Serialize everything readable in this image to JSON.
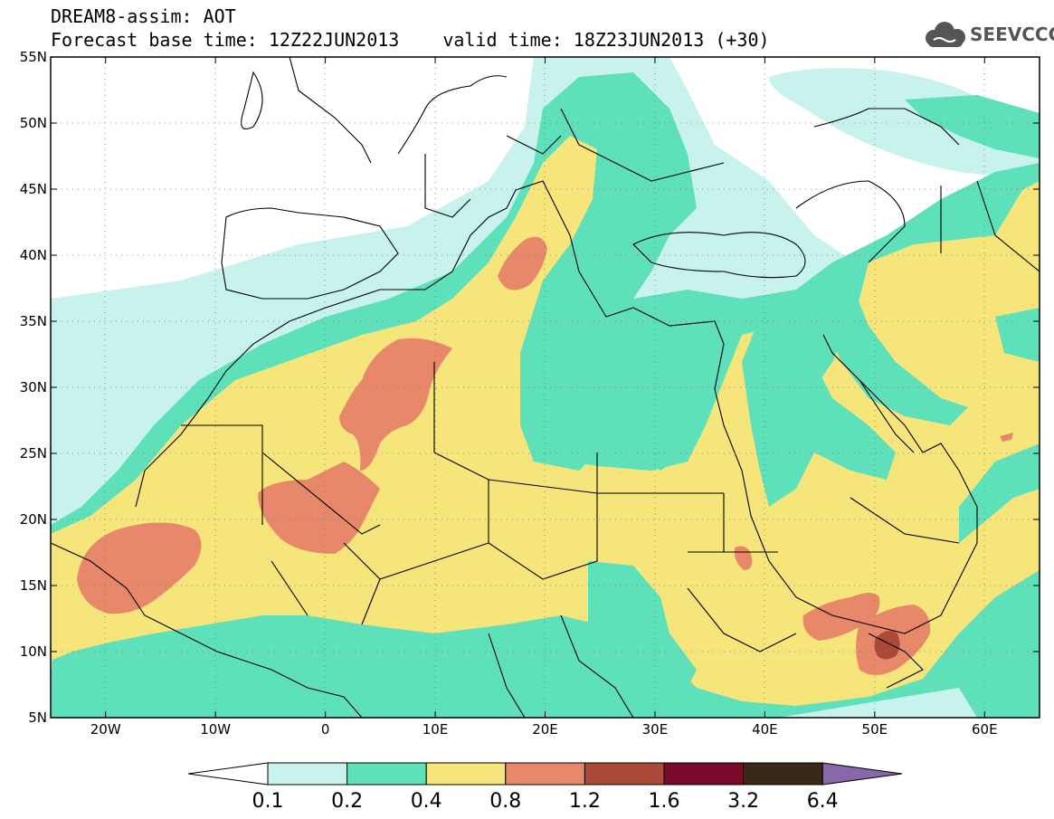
{
  "header": {
    "line1": "DREAM8-assim: AOT",
    "base_time_label": "Forecast base time: 12Z22JUN2013",
    "valid_time_label": "valid time: 18Z23JUN2013 (+30)"
  },
  "logo": {
    "text": "SEEVCCC",
    "icon": "cloud-icon"
  },
  "axes": {
    "lat_labels": [
      "55N",
      "50N",
      "45N",
      "40N",
      "35N",
      "30N",
      "25N",
      "20N",
      "15N",
      "10N",
      "5N"
    ],
    "lon_labels": [
      "20W",
      "10W",
      "0",
      "10E",
      "20E",
      "30E",
      "40E",
      "50E",
      "60E"
    ],
    "lat_range": [
      5,
      55
    ],
    "lon_range": [
      -25,
      65
    ]
  },
  "colorbar": {
    "labels": [
      "0.1",
      "0.2",
      "0.4",
      "0.8",
      "1.2",
      "1.6",
      "3.2",
      "6.4"
    ],
    "colors": [
      "#ffffff",
      "#c8f2ec",
      "#5ee0bb",
      "#f5e57b",
      "#e8886a",
      "#ac4a3a",
      "#7a0a2a",
      "#3a2818",
      "#8868a8"
    ]
  },
  "colors": {
    "level_0_1": "#c8f2ec",
    "level_0_2": "#5ee0bb",
    "level_0_4": "#f5e57b",
    "level_0_8": "#e8886a",
    "level_1_2": "#ac4a3a",
    "level_1_6": "#7a0a2a"
  }
}
